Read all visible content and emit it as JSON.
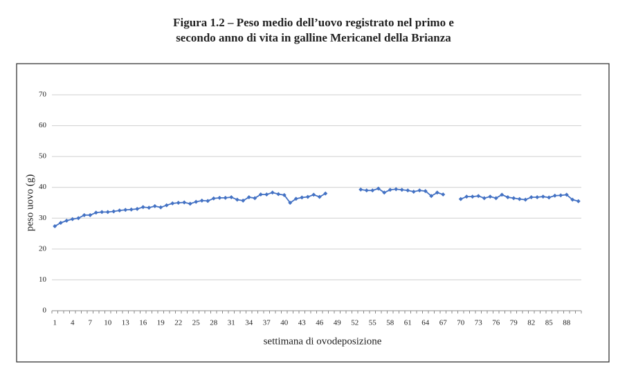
{
  "chart_data": {
    "type": "line",
    "title": [
      "Figura 1.2 – Peso medio dell’uovo registrato nel primo e",
      "secondo anno di vita in galline Mericanel della Brianza"
    ],
    "x_label": "settimana di ovodeposizione",
    "y_label": "peso uovo (g)",
    "categories": [
      "1",
      null,
      null,
      "4",
      null,
      null,
      "7",
      null,
      null,
      "10",
      null,
      null,
      "13",
      null,
      null,
      "16",
      null,
      null,
      "19",
      null,
      null,
      "22",
      null,
      null,
      "25",
      null,
      null,
      "28",
      null,
      null,
      "31",
      null,
      null,
      "34",
      null,
      null,
      "37",
      null,
      null,
      "40",
      null,
      null,
      "43",
      null,
      null,
      "46",
      null,
      null,
      "49",
      null,
      null,
      "52",
      null,
      null,
      "55",
      null,
      null,
      "58",
      null,
      null,
      "61",
      null,
      null,
      "64",
      null,
      null,
      "67",
      null,
      null,
      "70",
      null,
      null,
      "73",
      null,
      null,
      "76",
      null,
      null,
      "79",
      null,
      null,
      "82",
      null,
      null,
      "85",
      null,
      null,
      "88",
      null,
      null
    ],
    "series": [
      {
        "color": "#4472c4",
        "values": [
          27.4,
          28.5,
          29.2,
          29.7,
          30.0,
          31.0,
          31.0,
          31.8,
          32.0,
          32.0,
          32.2,
          32.5,
          32.7,
          32.8,
          33.0,
          33.6,
          33.4,
          33.9,
          33.5,
          34.2,
          34.8,
          35.0,
          35.1,
          34.7,
          35.3,
          35.7,
          35.6,
          36.4,
          36.6,
          36.6,
          36.8,
          36.0,
          35.7,
          36.8,
          36.5,
          37.7,
          37.7,
          38.3,
          37.8,
          37.5,
          35.0,
          36.3,
          36.7,
          36.9,
          37.6,
          36.9,
          38.0,
          null,
          null,
          null,
          null,
          null,
          39.3,
          39.0,
          39.0,
          39.6,
          38.3,
          39.2,
          39.4,
          39.2,
          39.0,
          38.6,
          39.0,
          38.8,
          37.2,
          38.3,
          37.7,
          null,
          null,
          36.2,
          37.0,
          37.0,
          37.2,
          36.5,
          37.0,
          36.5,
          37.6,
          36.8,
          36.5,
          36.2,
          36.0,
          36.8,
          36.8,
          37.0,
          36.7,
          37.3,
          37.4,
          37.6,
          36.0,
          35.5
        ]
      }
    ],
    "ylim": [
      0,
      70
    ],
    "yticks": [
      0,
      10,
      20,
      30,
      40,
      50,
      60,
      70
    ],
    "grid": true
  }
}
